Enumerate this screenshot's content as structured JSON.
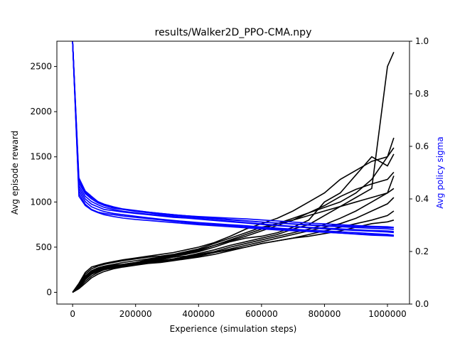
{
  "chart_data": {
    "type": "line",
    "title": "results/Walker2D_PPO-CMA.npy",
    "xlabel": "Experience (simulation steps)",
    "ylabel": "Avg episode reward",
    "ylabel_right": "Avg policy sigma",
    "xlim": [
      -50000,
      1070000
    ],
    "ylim": [
      -130,
      2780
    ],
    "ylim_right": [
      0.0,
      1.0
    ],
    "x_ticks": [
      0,
      200000,
      400000,
      600000,
      800000,
      1000000
    ],
    "x_tick_labels": [
      "0",
      "200000",
      "400000",
      "600000",
      "800000",
      "1000000"
    ],
    "y_ticks": [
      0,
      500,
      1000,
      1500,
      2000,
      2500
    ],
    "y_tick_labels": [
      "0",
      "500",
      "1000",
      "1500",
      "2000",
      "2500"
    ],
    "y2_ticks": [
      0.0,
      0.2,
      0.4,
      0.6,
      0.8,
      1.0
    ],
    "y2_tick_labels": [
      "0.0",
      "0.2",
      "0.4",
      "0.6",
      "0.8",
      "1.0"
    ],
    "grid": false,
    "legend": "none",
    "colors": {
      "reward": "#000000",
      "sigma": "#0000ff"
    },
    "x": [
      0,
      20000,
      40000,
      60000,
      80000,
      100000,
      130000,
      160000,
      200000,
      240000,
      280000,
      320000,
      360000,
      400000,
      450000,
      500000,
      550000,
      600000,
      650000,
      700000,
      750000,
      800000,
      850000,
      900000,
      950000,
      1000000,
      1020000
    ],
    "series_reward": [
      {
        "axis": "left",
        "values": [
          0,
          80,
          170,
          230,
          260,
          280,
          300,
          310,
          330,
          360,
          370,
          400,
          420,
          450,
          500,
          560,
          600,
          620,
          660,
          720,
          800,
          1000,
          1100,
          1300,
          1500,
          1400,
          1530
        ]
      },
      {
        "axis": "left",
        "values": [
          0,
          60,
          150,
          200,
          240,
          260,
          290,
          300,
          320,
          350,
          360,
          390,
          400,
          430,
          470,
          520,
          560,
          600,
          640,
          700,
          750,
          850,
          950,
          1050,
          1150,
          2500,
          2660
        ]
      },
      {
        "axis": "left",
        "values": [
          0,
          70,
          160,
          220,
          250,
          270,
          290,
          310,
          330,
          360,
          380,
          410,
          430,
          460,
          520,
          580,
          640,
          700,
          760,
          820,
          880,
          940,
          1000,
          1100,
          1250,
          1500,
          1710
        ]
      },
      {
        "axis": "left",
        "values": [
          0,
          50,
          120,
          180,
          220,
          250,
          280,
          300,
          320,
          340,
          350,
          370,
          390,
          420,
          450,
          500,
          540,
          580,
          620,
          660,
          700,
          750,
          820,
          900,
          1000,
          1100,
          1290
        ]
      },
      {
        "axis": "left",
        "values": [
          0,
          90,
          200,
          260,
          290,
          310,
          330,
          350,
          370,
          390,
          400,
          420,
          450,
          480,
          540,
          600,
          660,
          720,
          760,
          800,
          850,
          900,
          950,
          1000,
          1050,
          1100,
          1150
        ]
      },
      {
        "axis": "left",
        "values": [
          0,
          40,
          100,
          160,
          200,
          230,
          260,
          280,
          300,
          320,
          330,
          350,
          370,
          390,
          420,
          460,
          500,
          540,
          570,
          600,
          640,
          680,
          720,
          760,
          800,
          850,
          900
        ]
      },
      {
        "axis": "left",
        "values": [
          0,
          100,
          220,
          280,
          300,
          320,
          340,
          360,
          380,
          400,
          420,
          440,
          470,
          500,
          550,
          620,
          700,
          760,
          820,
          900,
          1000,
          1100,
          1250,
          1350,
          1450,
          1500,
          1600
        ]
      },
      {
        "axis": "left",
        "values": [
          0,
          60,
          140,
          200,
          230,
          250,
          270,
          290,
          310,
          330,
          340,
          360,
          380,
          400,
          440,
          480,
          520,
          560,
          600,
          640,
          680,
          720,
          760,
          820,
          900,
          980,
          1050
        ]
      },
      {
        "axis": "left",
        "values": [
          0,
          80,
          180,
          240,
          270,
          290,
          310,
          330,
          350,
          370,
          390,
          410,
          440,
          470,
          520,
          570,
          620,
          680,
          740,
          800,
          880,
          960,
          1060,
          1140,
          1200,
          1250,
          1330
        ]
      },
      {
        "axis": "left",
        "values": [
          0,
          70,
          150,
          210,
          240,
          260,
          280,
          300,
          320,
          340,
          350,
          370,
          390,
          410,
          440,
          470,
          500,
          540,
          570,
          600,
          620,
          650,
          680,
          720,
          760,
          780,
          800
        ]
      }
    ],
    "series_sigma": [
      {
        "axis": "right",
        "values": [
          1.0,
          0.44,
          0.4,
          0.38,
          0.37,
          0.36,
          0.355,
          0.35,
          0.345,
          0.34,
          0.335,
          0.33,
          0.327,
          0.323,
          0.318,
          0.313,
          0.308,
          0.303,
          0.298,
          0.294,
          0.29,
          0.286,
          0.283,
          0.28,
          0.277,
          0.274,
          0.272
        ]
      },
      {
        "axis": "right",
        "values": [
          1.0,
          0.46,
          0.42,
          0.4,
          0.385,
          0.375,
          0.365,
          0.36,
          0.355,
          0.35,
          0.345,
          0.34,
          0.336,
          0.332,
          0.327,
          0.322,
          0.317,
          0.312,
          0.308,
          0.304,
          0.3,
          0.297,
          0.294,
          0.291,
          0.288,
          0.286,
          0.284
        ]
      },
      {
        "axis": "right",
        "values": [
          1.0,
          0.42,
          0.38,
          0.36,
          0.35,
          0.345,
          0.34,
          0.335,
          0.33,
          0.325,
          0.32,
          0.315,
          0.31,
          0.306,
          0.302,
          0.298,
          0.294,
          0.29,
          0.286,
          0.282,
          0.278,
          0.274,
          0.27,
          0.266,
          0.262,
          0.26,
          0.258
        ]
      },
      {
        "axis": "right",
        "values": [
          1.0,
          0.48,
          0.43,
          0.41,
          0.39,
          0.38,
          0.37,
          0.362,
          0.356,
          0.35,
          0.345,
          0.34,
          0.336,
          0.333,
          0.33,
          0.327,
          0.324,
          0.32,
          0.316,
          0.312,
          0.308,
          0.305,
          0.302,
          0.299,
          0.296,
          0.294,
          0.292
        ]
      },
      {
        "axis": "right",
        "values": [
          1.0,
          0.43,
          0.39,
          0.37,
          0.36,
          0.352,
          0.345,
          0.34,
          0.334,
          0.328,
          0.323,
          0.318,
          0.314,
          0.31,
          0.306,
          0.302,
          0.298,
          0.293,
          0.289,
          0.285,
          0.281,
          0.278,
          0.275,
          0.272,
          0.268,
          0.265,
          0.262
        ]
      },
      {
        "axis": "right",
        "values": [
          1.0,
          0.45,
          0.41,
          0.39,
          0.378,
          0.368,
          0.36,
          0.353,
          0.347,
          0.342,
          0.338,
          0.333,
          0.329,
          0.325,
          0.32,
          0.315,
          0.31,
          0.305,
          0.3,
          0.296,
          0.292,
          0.289,
          0.286,
          0.283,
          0.28,
          0.278,
          0.276
        ]
      },
      {
        "axis": "right",
        "values": [
          1.0,
          0.41,
          0.375,
          0.358,
          0.348,
          0.34,
          0.333,
          0.327,
          0.322,
          0.318,
          0.314,
          0.31,
          0.306,
          0.302,
          0.298,
          0.294,
          0.29,
          0.286,
          0.282,
          0.279,
          0.276,
          0.273,
          0.27,
          0.267,
          0.264,
          0.262,
          0.26
        ]
      },
      {
        "axis": "right",
        "values": [
          1.0,
          0.47,
          0.425,
          0.405,
          0.39,
          0.378,
          0.368,
          0.36,
          0.353,
          0.347,
          0.342,
          0.337,
          0.333,
          0.329,
          0.325,
          0.32,
          0.316,
          0.312,
          0.308,
          0.305,
          0.302,
          0.299,
          0.297,
          0.295,
          0.293,
          0.291,
          0.29
        ]
      }
    ]
  }
}
